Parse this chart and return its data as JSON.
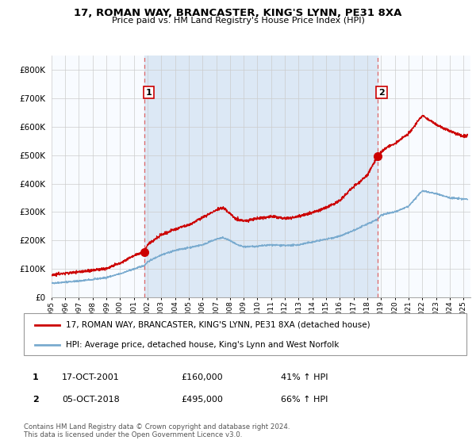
{
  "title": "17, ROMAN WAY, BRANCASTER, KING'S LYNN, PE31 8XA",
  "subtitle": "Price paid vs. HM Land Registry's House Price Index (HPI)",
  "x_start": 1995.0,
  "x_end": 2025.5,
  "y_min": 0,
  "y_max": 850000,
  "yticks": [
    0,
    100000,
    200000,
    300000,
    400000,
    500000,
    600000,
    700000,
    800000
  ],
  "ytick_labels": [
    "£0",
    "£100K",
    "£200K",
    "£300K",
    "£400K",
    "£500K",
    "£600K",
    "£700K",
    "£800K"
  ],
  "sale1_x": 2001.79,
  "sale1_y": 160000,
  "sale1_label": "1",
  "sale2_x": 2018.75,
  "sale2_y": 495000,
  "sale2_label": "2",
  "vline1_x": 2001.79,
  "vline2_x": 2018.75,
  "red_line_color": "#cc0000",
  "blue_line_color": "#7aabcf",
  "vline_color": "#dd6666",
  "shade_color": "#dce8f5",
  "legend_label_red": "17, ROMAN WAY, BRANCASTER, KING'S LYNN, PE31 8XA (detached house)",
  "legend_label_blue": "HPI: Average price, detached house, King's Lynn and West Norfolk",
  "annotation1_date": "17-OCT-2001",
  "annotation1_price": "£160,000",
  "annotation1_hpi": "41% ↑ HPI",
  "annotation2_date": "05-OCT-2018",
  "annotation2_price": "£495,000",
  "annotation2_hpi": "66% ↑ HPI",
  "footer": "Contains HM Land Registry data © Crown copyright and database right 2024.\nThis data is licensed under the Open Government Licence v3.0.",
  "xticks": [
    1995,
    1996,
    1997,
    1998,
    1999,
    2000,
    2001,
    2002,
    2003,
    2004,
    2005,
    2006,
    2007,
    2008,
    2009,
    2010,
    2011,
    2012,
    2013,
    2014,
    2015,
    2016,
    2017,
    2018,
    2019,
    2020,
    2021,
    2022,
    2023,
    2024,
    2025
  ],
  "plot_bg": "#eef4fb"
}
